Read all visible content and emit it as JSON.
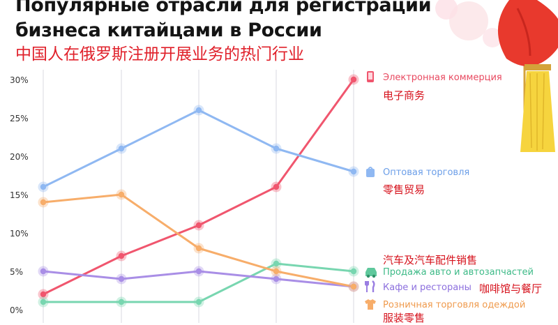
{
  "header": {
    "title_line1": "Популярные отрасли для регистрации",
    "title_line2": "бизнеса китайцами в России",
    "subtitle_cn": "中国人在俄罗斯注册开展业务的热门行业"
  },
  "colors": {
    "ecommerce": "#f0566e",
    "wholesale": "#8fb8f2",
    "auto": "#78d6b0",
    "cafe": "#a98ee6",
    "clothing": "#f7ad6a",
    "cn_text": "#d6121c",
    "grid": "#ececf0"
  },
  "legend": {
    "ecommerce": {
      "ru": "Электронная коммерция",
      "cn": "电子商务",
      "icon": "phone-icon"
    },
    "wholesale": {
      "ru": "Оптовая торговля",
      "cn": "零售贸易",
      "icon": "bag-icon"
    },
    "auto": {
      "ru": "Продажа авто и автозапчастей",
      "cn": "汽车及汽车配件销售",
      "icon": "car-icon"
    },
    "cafe": {
      "ru": "Кафе и рестораны",
      "cn": "咖啡馆与餐厅",
      "icon": "fork-knife-icon"
    },
    "clothing": {
      "ru": "Розничная торговля одеждой",
      "cn": "服装零售",
      "icon": "shirt-icon"
    }
  },
  "chart_data": {
    "type": "line",
    "x": [
      1,
      2,
      3,
      4,
      5
    ],
    "ylim": [
      0,
      30
    ],
    "y_ticks": [
      "0%",
      "5%",
      "10%",
      "15%",
      "20%",
      "25%",
      "30%"
    ],
    "grid": "vertical",
    "legend_placement": "right",
    "series": [
      {
        "key": "ecommerce",
        "name": "Электронная коммерция",
        "values": [
          2,
          7,
          11,
          16,
          30
        ]
      },
      {
        "key": "wholesale",
        "name": "Оптовая торговля",
        "values": [
          16,
          21,
          26,
          21,
          18
        ]
      },
      {
        "key": "auto",
        "name": "Продажа авто и автозапчастей",
        "values": [
          1,
          1,
          1,
          6,
          5
        ]
      },
      {
        "key": "cafe",
        "name": "Кафе и рестораны",
        "values": [
          5,
          4,
          5,
          4,
          3
        ]
      },
      {
        "key": "clothing",
        "name": "Розничная торговля одеждой",
        "values": [
          14,
          15,
          8,
          5,
          3
        ]
      }
    ]
  }
}
